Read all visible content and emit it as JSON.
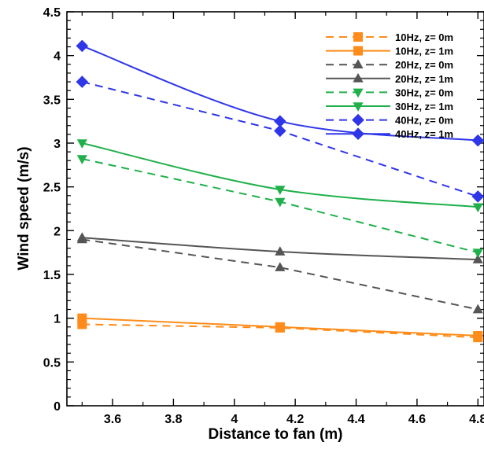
{
  "chart_data": {
    "type": "line",
    "xlabel": "Distance to fan (m)",
    "ylabel": "Wind speed (m/s)",
    "xlim": [
      3.45,
      4.82
    ],
    "ylim": [
      0,
      4.5
    ],
    "x_ticks": [
      3.6,
      3.8,
      4,
      4.2,
      4.4,
      4.6,
      4.8
    ],
    "x_tick_labels": [
      "3.6",
      "3.8",
      "4",
      "4.2",
      "4.4",
      "4.6",
      "4.8"
    ],
    "y_ticks": [
      0,
      0.5,
      1,
      1.5,
      2,
      2.5,
      3,
      3.5,
      4,
      4.5
    ],
    "y_tick_labels": [
      "0",
      "0.5",
      "1",
      "1.5",
      "2",
      "2.5",
      "3",
      "3.5",
      "4",
      "4.5"
    ],
    "grid": false,
    "legend_position": "top-right",
    "x": [
      3.5,
      4.15,
      4.8
    ],
    "series": [
      {
        "name": "10Hz, z= 0m",
        "color": "#FF8C1A",
        "dash": "dashed",
        "marker": "square",
        "smooth": false,
        "values": [
          0.93,
          0.89,
          0.78
        ]
      },
      {
        "name": "10Hz, z= 1m",
        "color": "#FF8C1A",
        "dash": "solid",
        "marker": "square",
        "smooth": true,
        "values": [
          1.0,
          0.9,
          0.8
        ]
      },
      {
        "name": "20Hz, z= 0m",
        "color": "#555555",
        "dash": "dashed",
        "marker": "triangle-up",
        "smooth": false,
        "values": [
          1.9,
          1.58,
          1.1
        ]
      },
      {
        "name": "20Hz, z= 1m",
        "color": "#555555",
        "dash": "solid",
        "marker": "triangle-up",
        "smooth": true,
        "values": [
          1.92,
          1.76,
          1.67
        ]
      },
      {
        "name": "30Hz, z= 0m",
        "color": "#20B04B",
        "dash": "dashed",
        "marker": "triangle-down",
        "smooth": false,
        "values": [
          2.82,
          2.33,
          1.75
        ]
      },
      {
        "name": "30Hz, z= 1m",
        "color": "#20B04B",
        "dash": "solid",
        "marker": "triangle-down",
        "smooth": true,
        "values": [
          3.0,
          2.47,
          2.27
        ]
      },
      {
        "name": "40Hz, z= 0m",
        "color": "#2F36E8",
        "dash": "dashed",
        "marker": "diamond",
        "smooth": false,
        "values": [
          3.7,
          3.14,
          2.39
        ]
      },
      {
        "name": "40Hz, z= 1m",
        "color": "#2F36E8",
        "dash": "solid",
        "marker": "diamond",
        "smooth": true,
        "values": [
          4.11,
          3.25,
          3.03
        ]
      }
    ]
  }
}
